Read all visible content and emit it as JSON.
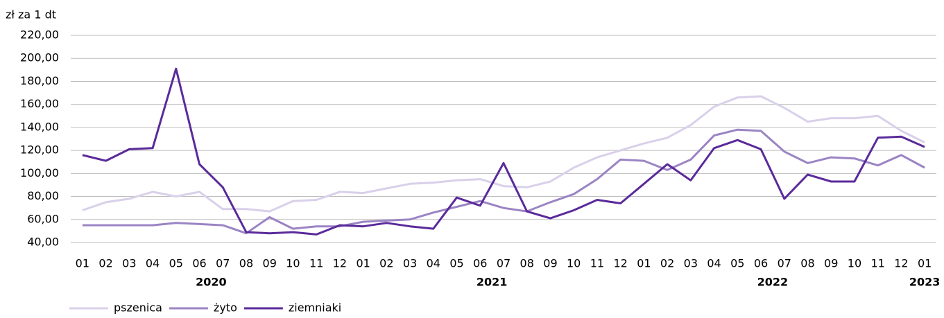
{
  "chart_data": {
    "type": "line",
    "y_axis_label": "zł za 1 dt",
    "categories": [
      "01",
      "02",
      "03",
      "04",
      "05",
      "06",
      "07",
      "08",
      "09",
      "10",
      "11",
      "12",
      "01",
      "02",
      "03",
      "04",
      "05",
      "06",
      "07",
      "08",
      "09",
      "10",
      "11",
      "12",
      "01",
      "02",
      "03",
      "04",
      "05",
      "06",
      "07",
      "08",
      "09",
      "10",
      "11",
      "12",
      "01"
    ],
    "year_labels": [
      "2020",
      "2021",
      "2022",
      "2023"
    ],
    "series": [
      {
        "name": "pszenica",
        "color": "#d9d0ea",
        "values": [
          68,
          75,
          78,
          84,
          80,
          84,
          69,
          69,
          67,
          76,
          77,
          84,
          83,
          87,
          91,
          92,
          94,
          95,
          89,
          88,
          93,
          105,
          114,
          120,
          126,
          131,
          142,
          158,
          166,
          167,
          157,
          145,
          148,
          148,
          150,
          137,
          127
        ]
      },
      {
        "name": "żyto",
        "color": "#9b84c4",
        "values": [
          55,
          55,
          55,
          55,
          57,
          56,
          55,
          48,
          62,
          52,
          54,
          54,
          58,
          59,
          60,
          66,
          71,
          76,
          70,
          67,
          75,
          82,
          95,
          112,
          111,
          103,
          112,
          133,
          138,
          137,
          119,
          109,
          114,
          113,
          107,
          116,
          105
        ]
      },
      {
        "name": "ziemniaki",
        "color": "#5a2a9a",
        "values": [
          116,
          111,
          121,
          122,
          191,
          108,
          88,
          49,
          48,
          49,
          47,
          55,
          54,
          57,
          54,
          52,
          79,
          72,
          109,
          67,
          61,
          68,
          77,
          74,
          91,
          108,
          94,
          122,
          129,
          121,
          78,
          99,
          93,
          93,
          131,
          132,
          123
        ]
      }
    ],
    "ylim": [
      40,
      220
    ],
    "yticks": [
      {
        "value": 40,
        "label": "40,00"
      },
      {
        "value": 60,
        "label": "60,00"
      },
      {
        "value": 80,
        "label": "80,00"
      },
      {
        "value": 100,
        "label": "100,00"
      },
      {
        "value": 120,
        "label": "120,00"
      },
      {
        "value": 140,
        "label": "140,00"
      },
      {
        "value": 160,
        "label": "160,00"
      },
      {
        "value": 180,
        "label": "180,00"
      },
      {
        "value": 200,
        "label": "200,00"
      },
      {
        "value": 220,
        "label": "220,00"
      }
    ],
    "grid": true,
    "legend": "bottom-left"
  }
}
